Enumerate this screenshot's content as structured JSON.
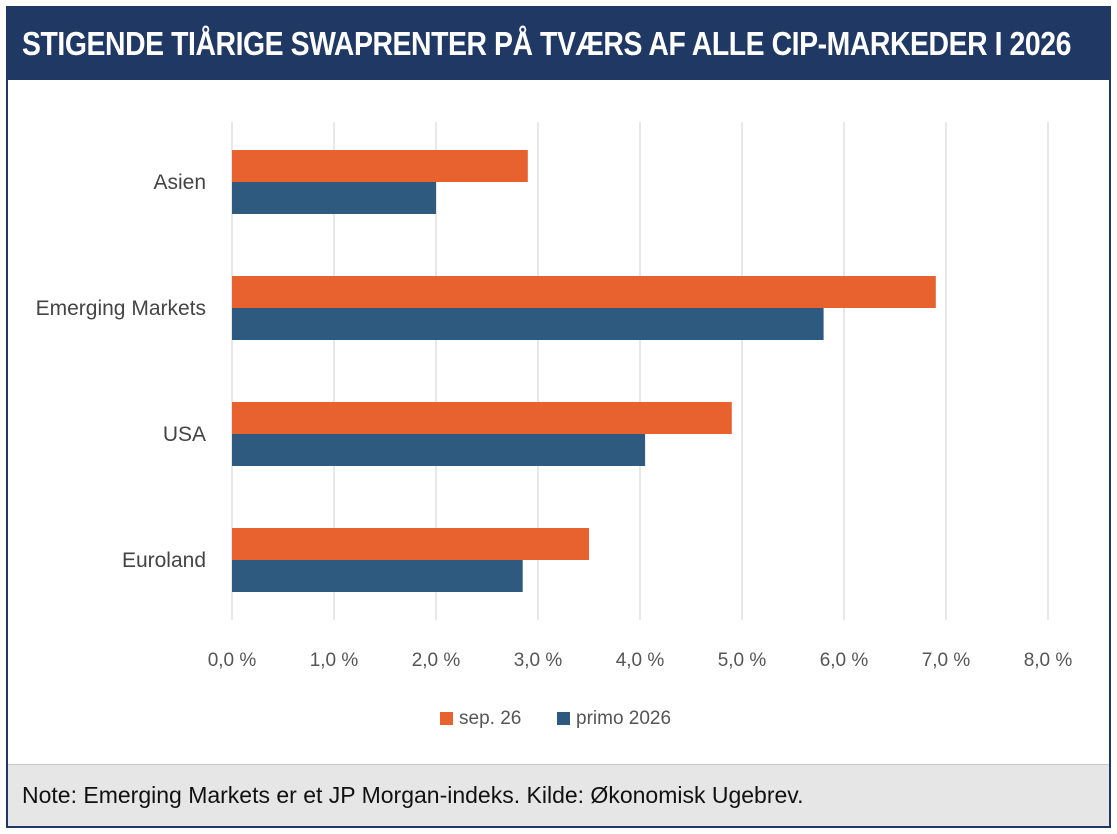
{
  "header": {
    "title": "STIGENDE TIÅRIGE SWAPRENTER PÅ TVÆRS AF ALLE CIP-MARKEDER I 2026"
  },
  "footer": {
    "note": "Note: Emerging Markets er et JP Morgan-indeks.  Kilde: Økonomisk Ugebrev."
  },
  "colors": {
    "frame": "#1f3864",
    "series_sep": "#e8622f",
    "series_primo": "#2e5a80",
    "grid": "#d9d9d9",
    "note_bg": "#e6e6e6"
  },
  "chart_data": {
    "type": "bar",
    "orientation": "horizontal",
    "categories": [
      "Asien",
      "Emerging Markets",
      "USA",
      "Euroland"
    ],
    "series": [
      {
        "name": "sep. 26",
        "values": [
          2.9,
          6.9,
          4.9,
          3.5
        ]
      },
      {
        "name": "primo 2026",
        "values": [
          2.0,
          5.8,
          4.05,
          2.85
        ]
      }
    ],
    "xlim": [
      0,
      8
    ],
    "xticks": [
      0,
      1,
      2,
      3,
      4,
      5,
      6,
      7,
      8
    ],
    "xtick_labels": [
      "0,0 %",
      "1,0 %",
      "2,0 %",
      "3,0 %",
      "4,0 %",
      "5,0 %",
      "6,0 %",
      "7,0 %",
      "8,0 %"
    ],
    "grid": "vertical",
    "legend_position": "bottom"
  }
}
